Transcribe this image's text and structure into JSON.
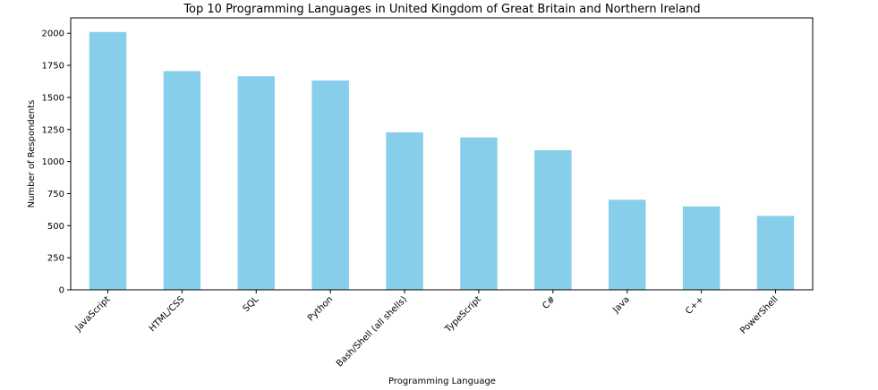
{
  "chart_data": {
    "type": "bar",
    "title": "Top 10 Programming Languages in United Kingdom of Great Britain and Northern Ireland",
    "xlabel": "Programming Language",
    "ylabel": "Number of Respondents",
    "categories": [
      "JavaScript",
      "HTML/CSS",
      "SQL",
      "Python",
      "Bash/Shell (all shells)",
      "TypeScript",
      "C#",
      "Java",
      "C++",
      "PowerShell"
    ],
    "values": [
      2010,
      1705,
      1665,
      1632,
      1228,
      1188,
      1088,
      702,
      650,
      576
    ],
    "ylim": [
      0,
      2120
    ],
    "yticks": [
      0,
      250,
      500,
      750,
      1000,
      1250,
      1500,
      1750,
      2000
    ],
    "bar_color": "#87ceeb",
    "grid": false,
    "legend": "none"
  }
}
